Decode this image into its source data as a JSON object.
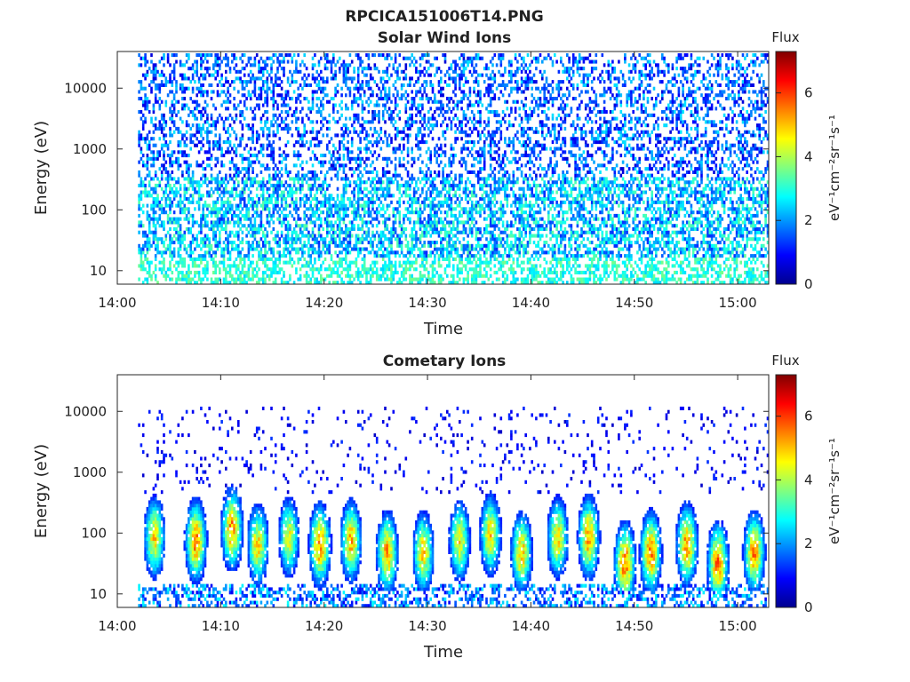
{
  "figure": {
    "title": "RPCICA151006T14.PNG"
  },
  "chart_data": [
    {
      "type": "heatmap",
      "title": "Solar Wind Ions",
      "xlabel": "Time",
      "ylabel": "Energy (eV)",
      "x_ticks": [
        "14:00",
        "14:10",
        "14:20",
        "14:30",
        "14:40",
        "14:50",
        "15:00"
      ],
      "x_range": [
        "14:00",
        "15:03"
      ],
      "y_scale": "log",
      "y_ticks": [
        "10",
        "100",
        "1000",
        "10000"
      ],
      "y_range": [
        6,
        40000
      ],
      "colorbar": {
        "title": "Flux",
        "label": "eV⁻¹cm⁻²sr⁻¹s⁻¹",
        "ticks": [
          "0",
          "2",
          "4",
          "6"
        ],
        "range": [
          0,
          7.3
        ],
        "colormap": "jet"
      },
      "description_of_data": "Sparse low-flux counts (~0.5–2.5) spread across all energies 10–20000 eV from 14:02 to 15:03, with stronger vertical streaks (~2.5–3.5) below ~300 eV"
    },
    {
      "type": "heatmap",
      "title": "Cometary Ions",
      "xlabel": "Time",
      "ylabel": "Energy (eV)",
      "x_ticks": [
        "14:00",
        "14:10",
        "14:20",
        "14:30",
        "14:40",
        "14:50",
        "15:00"
      ],
      "x_range": [
        "14:00",
        "15:03"
      ],
      "y_scale": "log",
      "y_ticks": [
        "10",
        "100",
        "1000",
        "10000"
      ],
      "y_range": [
        6,
        40000
      ],
      "colorbar": {
        "title": "Flux",
        "label": "eV⁻¹cm⁻²sr⁻¹s⁻¹",
        "ticks": [
          "0",
          "2",
          "4",
          "6"
        ],
        "range": [
          0,
          7.3
        ],
        "colormap": "jet"
      },
      "bursts": [
        {
          "time": "14:03:30",
          "peak_energy": 80,
          "peak_flux": 5.0
        },
        {
          "time": "14:07:30",
          "peak_energy": 70,
          "peak_flux": 5.8
        },
        {
          "time": "14:11:00",
          "peak_energy": 110,
          "peak_flux": 5.6
        },
        {
          "time": "14:13:30",
          "peak_energy": 60,
          "peak_flux": 5.0
        },
        {
          "time": "14:16:30",
          "peak_energy": 80,
          "peak_flux": 4.6
        },
        {
          "time": "14:19:30",
          "peak_energy": 60,
          "peak_flux": 5.8
        },
        {
          "time": "14:22:30",
          "peak_energy": 70,
          "peak_flux": 5.3
        },
        {
          "time": "14:26:00",
          "peak_energy": 45,
          "peak_flux": 5.5
        },
        {
          "time": "14:29:30",
          "peak_energy": 45,
          "peak_flux": 5.0
        },
        {
          "time": "14:33:00",
          "peak_energy": 70,
          "peak_flux": 4.8
        },
        {
          "time": "14:36:00",
          "peak_energy": 90,
          "peak_flux": 5.0
        },
        {
          "time": "14:39:00",
          "peak_energy": 45,
          "peak_flux": 5.2
        },
        {
          "time": "14:42:30",
          "peak_energy": 80,
          "peak_flux": 5.0
        },
        {
          "time": "14:45:30",
          "peak_energy": 80,
          "peak_flux": 5.5
        },
        {
          "time": "14:49:00",
          "peak_energy": 30,
          "peak_flux": 5.8
        },
        {
          "time": "14:51:30",
          "peak_energy": 45,
          "peak_flux": 5.8
        },
        {
          "time": "14:55:00",
          "peak_energy": 60,
          "peak_flux": 5.6
        },
        {
          "time": "14:58:00",
          "peak_energy": 30,
          "peak_flux": 5.8
        },
        {
          "time": "15:01:30",
          "peak_energy": 45,
          "peak_flux": 5.6
        }
      ],
      "description_of_data": "Periodic bursts of cometary ions (~2.5–6) between ~15 and ~600 eV, with sparse low-flux counts at higher energies and a low-flux band near 10 eV"
    }
  ]
}
